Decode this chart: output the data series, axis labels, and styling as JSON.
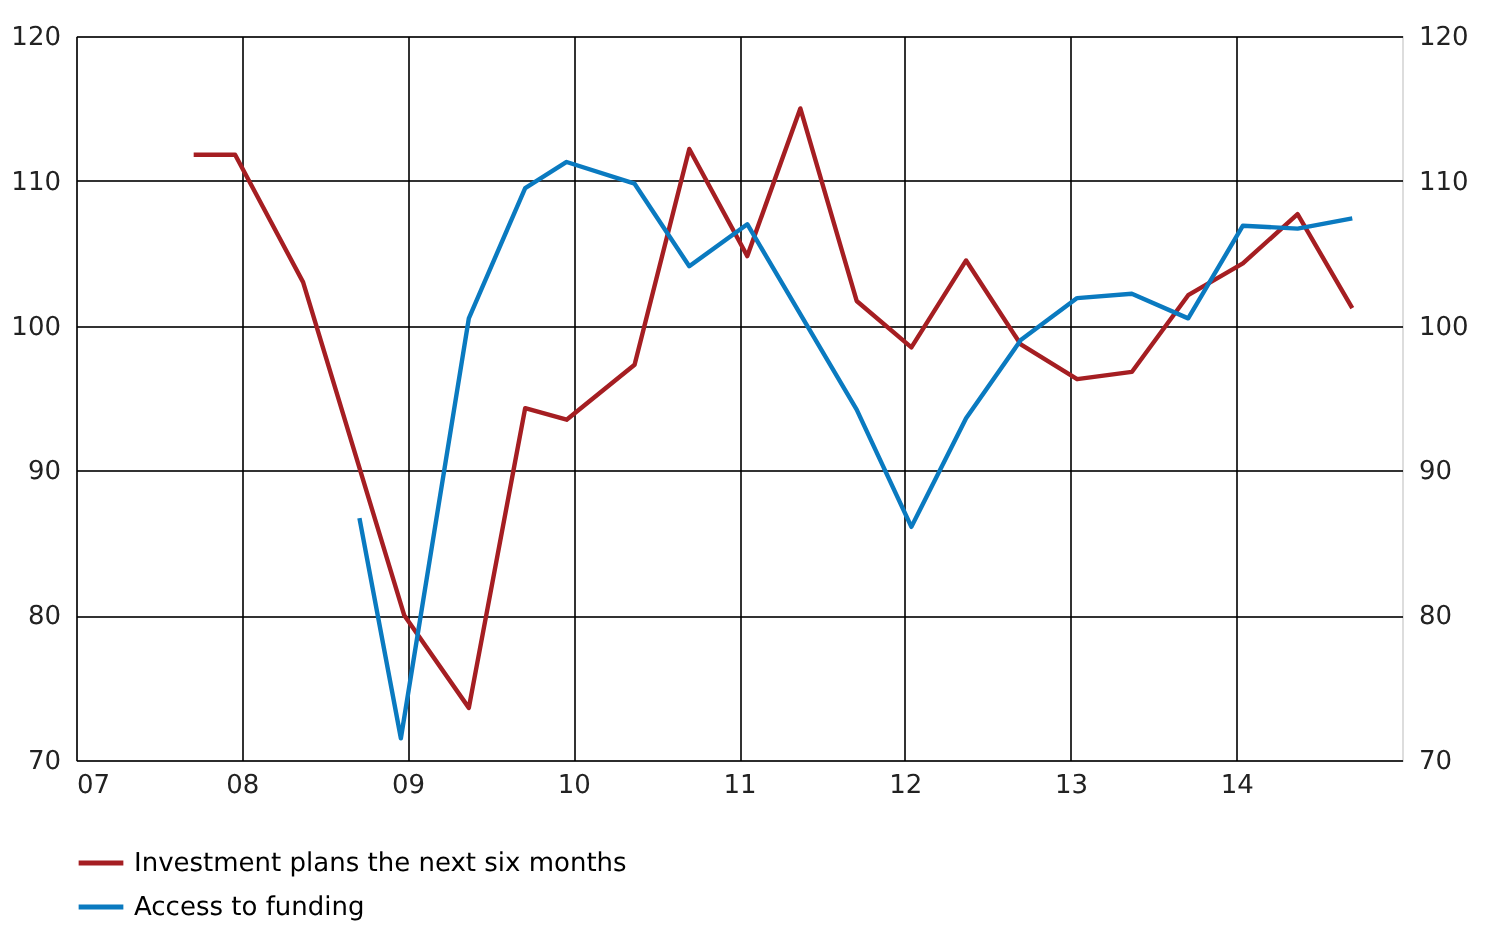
{
  "chart_data": {
    "type": "line",
    "xlim": [
      2007,
      2015
    ],
    "xticks": [
      {
        "value": 2007,
        "label": "07"
      },
      {
        "value": 2008,
        "label": "08"
      },
      {
        "value": 2009,
        "label": "09"
      },
      {
        "value": 2010,
        "label": "10"
      },
      {
        "value": 2011,
        "label": "11"
      },
      {
        "value": 2012,
        "label": "12"
      },
      {
        "value": 2013,
        "label": "13"
      },
      {
        "value": 2014,
        "label": "14"
      }
    ],
    "ylim": [
      70,
      120
    ],
    "yticks": [
      70,
      80,
      90,
      100,
      110,
      120
    ],
    "y2lim": [
      70,
      120
    ],
    "y2ticks": [
      70,
      80,
      90,
      100,
      110,
      120
    ],
    "grid": true,
    "legend": "bottom",
    "line_style": "solid",
    "series": [
      {
        "name": "Investment plans the next six months",
        "color": "#a51e22",
        "x": [
          2007.71,
          2007.96,
          2008.37,
          2008.98,
          2009.37,
          2009.71,
          2009.96,
          2010.37,
          2010.7,
          2011.05,
          2011.37,
          2011.71,
          2012.04,
          2012.37,
          2012.7,
          2013.04,
          2013.37,
          2013.71,
          2014.04,
          2014.37,
          2014.7
        ],
        "values": [
          111.8,
          111.8,
          103.0,
          80.0,
          73.6,
          94.3,
          93.5,
          97.3,
          112.2,
          104.8,
          115.0,
          101.7,
          98.5,
          104.5,
          98.7,
          96.3,
          96.8,
          102.1,
          104.3,
          107.7,
          101.2
        ]
      },
      {
        "name": "Access to funding",
        "color": "#0a7ac0",
        "x": [
          2008.71,
          2008.96,
          2009.37,
          2009.71,
          2009.96,
          2010.37,
          2010.7,
          2011.05,
          2011.71,
          2012.04,
          2012.37,
          2012.7,
          2013.04,
          2013.37,
          2013.71,
          2014.04,
          2014.37,
          2014.7
        ],
        "values": [
          86.7,
          71.5,
          100.5,
          109.5,
          111.3,
          109.8,
          104.1,
          107.0,
          94.2,
          86.1,
          93.6,
          99.0,
          101.9,
          102.2,
          100.5,
          106.9,
          106.7,
          107.4
        ]
      }
    ]
  }
}
